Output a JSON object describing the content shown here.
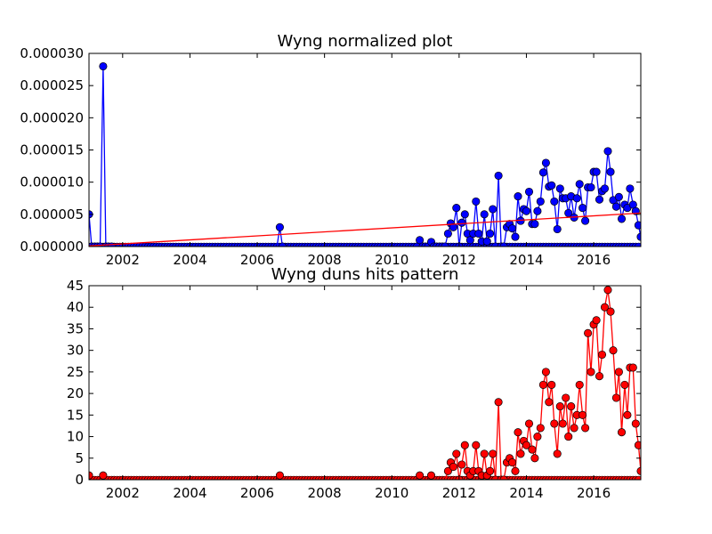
{
  "chart_data": [
    {
      "type": "line",
      "title": "Wyng normalized plot",
      "xlabel": "",
      "ylabel": "",
      "xlim": [
        2001.0,
        2017.4
      ],
      "ylim": [
        0,
        3e-05
      ],
      "x_ticks": [
        2002,
        2004,
        2006,
        2008,
        2010,
        2012,
        2014,
        2016
      ],
      "x_tick_labels": [
        "2002",
        "2004",
        "2006",
        "2008",
        "2010",
        "2012",
        "2014",
        "2016"
      ],
      "y_ticks": [
        0,
        5e-06,
        1e-05,
        1.5e-05,
        2e-05,
        2.5e-05,
        3e-05
      ],
      "y_tick_labels": [
        "0.000000",
        "0.000005",
        "0.000010",
        "0.000015",
        "0.000020",
        "0.000025",
        "0.000030"
      ],
      "grid": false,
      "series": [
        {
          "color": "#0000ff",
          "marker": "circle",
          "points": [
            [
              2001.0,
              5e-06
            ],
            [
              2001.08,
              0
            ],
            [
              2001.17,
              0
            ],
            [
              2001.25,
              0
            ],
            [
              2001.33,
              0
            ],
            [
              2001.42,
              2.8e-05
            ],
            [
              2001.5,
              0
            ],
            [
              2001.58,
              0
            ],
            [
              2001.67,
              0
            ],
            [
              2006.67,
              3e-06
            ],
            [
              2006.75,
              0
            ],
            [
              2010.75,
              0
            ],
            [
              2010.83,
              1e-06
            ],
            [
              2010.92,
              0
            ],
            [
              2011.0,
              0
            ],
            [
              2011.08,
              0
            ],
            [
              2011.17,
              7e-07
            ],
            [
              2011.25,
              0
            ],
            [
              2011.33,
              0
            ],
            [
              2011.42,
              0
            ],
            [
              2011.5,
              0
            ],
            [
              2011.58,
              0
            ],
            [
              2011.67,
              2e-06
            ],
            [
              2011.75,
              3.6e-06
            ],
            [
              2011.83,
              3e-06
            ],
            [
              2011.92,
              6e-06
            ],
            [
              2012.0,
              0
            ],
            [
              2012.08,
              3.7e-06
            ],
            [
              2012.17,
              5e-06
            ],
            [
              2012.25,
              2e-06
            ],
            [
              2012.33,
              1e-06
            ],
            [
              2012.42,
              2e-06
            ],
            [
              2012.5,
              7e-06
            ],
            [
              2012.58,
              2e-06
            ],
            [
              2012.67,
              8e-07
            ],
            [
              2012.75,
              5e-06
            ],
            [
              2012.83,
              8e-07
            ],
            [
              2012.92,
              2e-06
            ],
            [
              2013.0,
              5.8e-06
            ],
            [
              2013.08,
              0
            ],
            [
              2013.17,
              1.1e-05
            ],
            [
              2013.25,
              0
            ],
            [
              2013.33,
              0
            ],
            [
              2013.42,
              3e-06
            ],
            [
              2013.5,
              3.5e-06
            ],
            [
              2013.58,
              2.8e-06
            ],
            [
              2013.67,
              1.5e-06
            ],
            [
              2013.75,
              7.8e-06
            ],
            [
              2013.83,
              4e-06
            ],
            [
              2013.92,
              5.8e-06
            ],
            [
              2014.0,
              5.5e-06
            ],
            [
              2014.08,
              8.5e-06
            ],
            [
              2014.17,
              3.5e-06
            ],
            [
              2014.25,
              3.5e-06
            ],
            [
              2014.33,
              5.5e-06
            ],
            [
              2014.42,
              7e-06
            ],
            [
              2014.5,
              1.15e-05
            ],
            [
              2014.58,
              1.3e-05
            ],
            [
              2014.67,
              9.3e-06
            ],
            [
              2014.75,
              9.5e-06
            ],
            [
              2014.83,
              7e-06
            ],
            [
              2014.92,
              2.7e-06
            ],
            [
              2015.0,
              9e-06
            ],
            [
              2015.08,
              7.5e-06
            ],
            [
              2015.17,
              7.5e-06
            ],
            [
              2015.25,
              5.2e-06
            ],
            [
              2015.33,
              7.8e-06
            ],
            [
              2015.42,
              4.5e-06
            ],
            [
              2015.5,
              7.5e-06
            ],
            [
              2015.58,
              9.7e-06
            ],
            [
              2015.67,
              6e-06
            ],
            [
              2015.75,
              4e-06
            ],
            [
              2015.83,
              9.2e-06
            ],
            [
              2015.92,
              9.2e-06
            ],
            [
              2016.0,
              1.16e-05
            ],
            [
              2016.08,
              1.16e-05
            ],
            [
              2016.17,
              7.3e-06
            ],
            [
              2016.25,
              8.6e-06
            ],
            [
              2016.33,
              9e-06
            ],
            [
              2016.42,
              1.48e-05
            ],
            [
              2016.5,
              1.16e-05
            ],
            [
              2016.58,
              7.2e-06
            ],
            [
              2016.67,
              6.2e-06
            ],
            [
              2016.75,
              7.7e-06
            ],
            [
              2016.83,
              4.3e-06
            ],
            [
              2016.92,
              6.5e-06
            ],
            [
              2017.0,
              6e-06
            ],
            [
              2017.08,
              9e-06
            ],
            [
              2017.17,
              6.5e-06
            ],
            [
              2017.25,
              5.5e-06
            ],
            [
              2017.33,
              3.3e-06
            ],
            [
              2017.4,
              1.5e-06
            ]
          ],
          "zero_run": [
            2001.0,
            2017.4
          ]
        },
        {
          "color": "#ff0000",
          "marker": "none",
          "trendline": [
            [
              2001.0,
              1e-07
            ],
            [
              2017.4,
              5.2e-06
            ]
          ]
        }
      ]
    },
    {
      "type": "line",
      "title": "Wyng duns hits pattern",
      "xlabel": "",
      "ylabel": "",
      "xlim": [
        2001.0,
        2017.4
      ],
      "ylim": [
        0,
        45
      ],
      "x_ticks": [
        2002,
        2004,
        2006,
        2008,
        2010,
        2012,
        2014,
        2016
      ],
      "x_tick_labels": [
        "2002",
        "2004",
        "2006",
        "2008",
        "2010",
        "2012",
        "2014",
        "2016"
      ],
      "y_ticks": [
        0,
        5,
        10,
        15,
        20,
        25,
        30,
        35,
        40,
        45
      ],
      "y_tick_labels": [
        "0",
        "5",
        "10",
        "15",
        "20",
        "25",
        "30",
        "35",
        "40",
        "45"
      ],
      "grid": false,
      "series": [
        {
          "color": "#ff0000",
          "marker": "circle",
          "points": [
            [
              2001.0,
              1
            ],
            [
              2001.42,
              1
            ],
            [
              2006.67,
              1
            ],
            [
              2010.83,
              1
            ],
            [
              2011.17,
              1
            ],
            [
              2011.67,
              2
            ],
            [
              2011.75,
              4
            ],
            [
              2011.83,
              3
            ],
            [
              2011.92,
              6
            ],
            [
              2012.0,
              0
            ],
            [
              2012.08,
              3.5
            ],
            [
              2012.17,
              8
            ],
            [
              2012.25,
              2
            ],
            [
              2012.33,
              1
            ],
            [
              2012.42,
              2
            ],
            [
              2012.5,
              8
            ],
            [
              2012.58,
              2
            ],
            [
              2012.67,
              1
            ],
            [
              2012.75,
              6
            ],
            [
              2012.83,
              1
            ],
            [
              2012.92,
              2
            ],
            [
              2013.0,
              6
            ],
            [
              2013.08,
              0
            ],
            [
              2013.17,
              18
            ],
            [
              2013.25,
              0
            ],
            [
              2013.33,
              0
            ],
            [
              2013.42,
              4
            ],
            [
              2013.5,
              5
            ],
            [
              2013.58,
              4
            ],
            [
              2013.67,
              2
            ],
            [
              2013.75,
              11
            ],
            [
              2013.83,
              6
            ],
            [
              2013.92,
              9
            ],
            [
              2014.0,
              8
            ],
            [
              2014.08,
              13
            ],
            [
              2014.17,
              7
            ],
            [
              2014.25,
              5
            ],
            [
              2014.33,
              10
            ],
            [
              2014.42,
              12
            ],
            [
              2014.5,
              22
            ],
            [
              2014.58,
              25
            ],
            [
              2014.67,
              18
            ],
            [
              2014.75,
              22
            ],
            [
              2014.83,
              13
            ],
            [
              2014.92,
              6
            ],
            [
              2015.0,
              17
            ],
            [
              2015.08,
              13
            ],
            [
              2015.17,
              19
            ],
            [
              2015.25,
              10
            ],
            [
              2015.33,
              17
            ],
            [
              2015.42,
              12
            ],
            [
              2015.5,
              15
            ],
            [
              2015.58,
              22
            ],
            [
              2015.67,
              15
            ],
            [
              2015.75,
              12
            ],
            [
              2015.83,
              34
            ],
            [
              2015.92,
              25
            ],
            [
              2016.0,
              36
            ],
            [
              2016.08,
              37
            ],
            [
              2016.17,
              24
            ],
            [
              2016.25,
              29
            ],
            [
              2016.33,
              40
            ],
            [
              2016.42,
              44
            ],
            [
              2016.5,
              39
            ],
            [
              2016.58,
              30
            ],
            [
              2016.67,
              19
            ],
            [
              2016.75,
              25
            ],
            [
              2016.83,
              11
            ],
            [
              2016.92,
              22
            ],
            [
              2017.0,
              15
            ],
            [
              2017.08,
              26
            ],
            [
              2017.17,
              26
            ],
            [
              2017.25,
              13
            ],
            [
              2017.33,
              8
            ],
            [
              2017.4,
              2
            ]
          ],
          "zero_run": [
            2001.0,
            2017.4
          ]
        }
      ]
    }
  ]
}
